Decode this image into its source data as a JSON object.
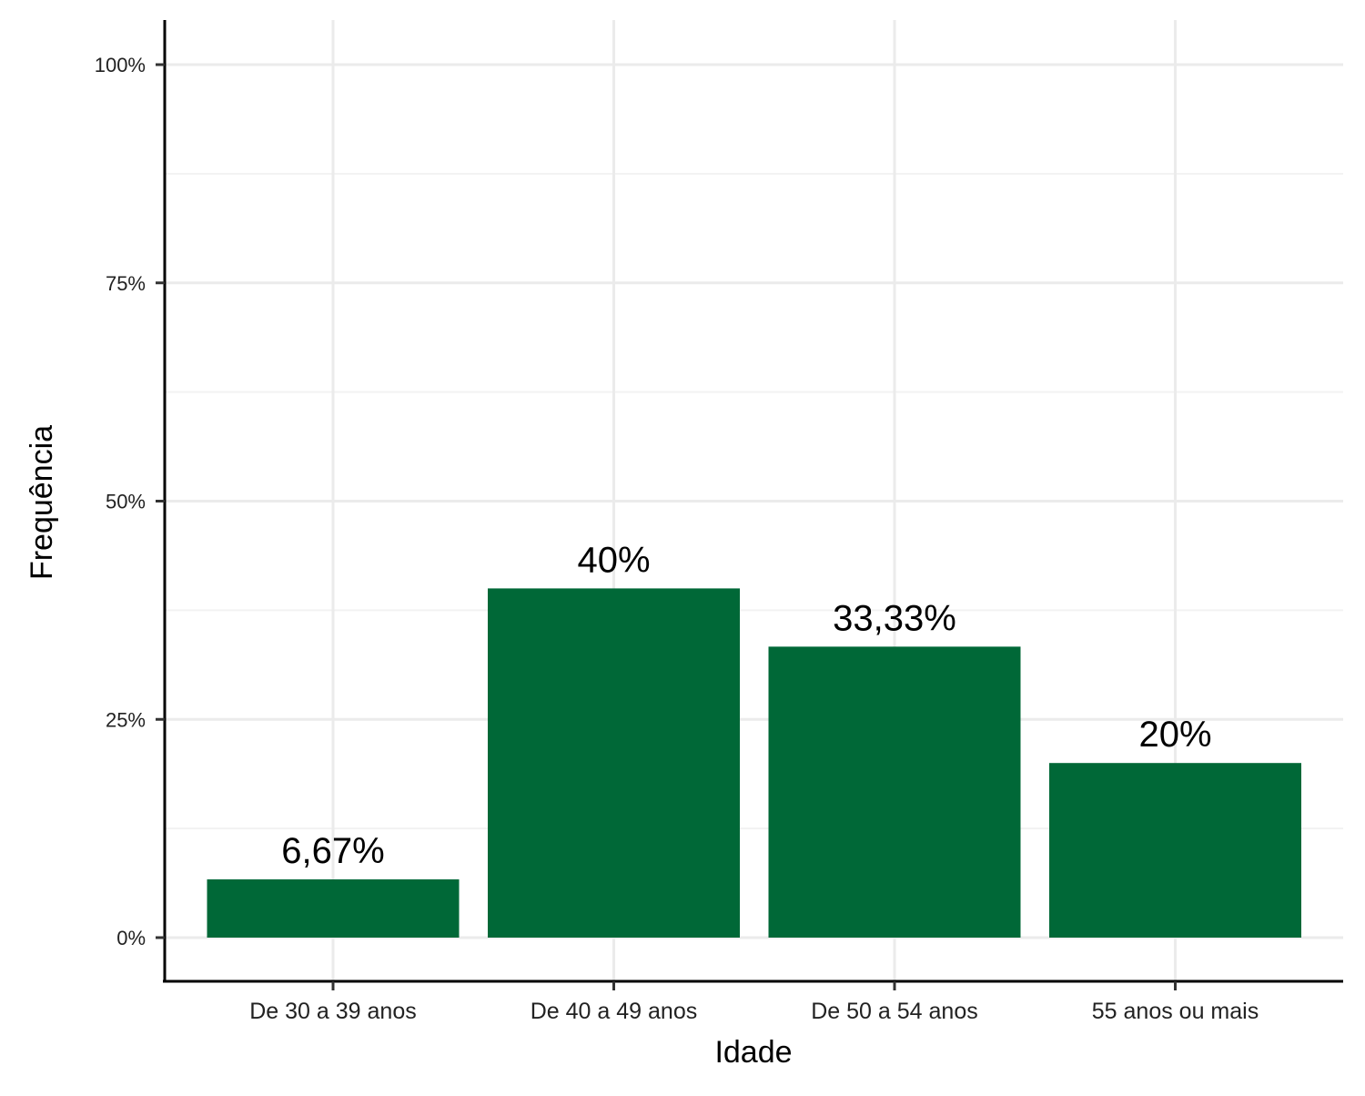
{
  "chart_data": {
    "type": "bar",
    "categories": [
      "De 30 a 39 anos",
      "De 40 a 49 anos",
      "De 50 a 54 anos",
      "55 anos ou mais"
    ],
    "values": [
      6.67,
      40,
      33.33,
      20
    ],
    "data_labels": [
      "6,67%",
      "40%",
      "33,33%",
      "20%"
    ],
    "xlabel": "Idade",
    "ylabel": "Frequência",
    "ylim": [
      0,
      100
    ],
    "y_ticks": [
      0,
      25,
      50,
      75,
      100
    ],
    "y_tick_labels": [
      "0%",
      "25%",
      "50%",
      "75%",
      "100%"
    ],
    "grid": true,
    "bar_color": "#006837"
  }
}
